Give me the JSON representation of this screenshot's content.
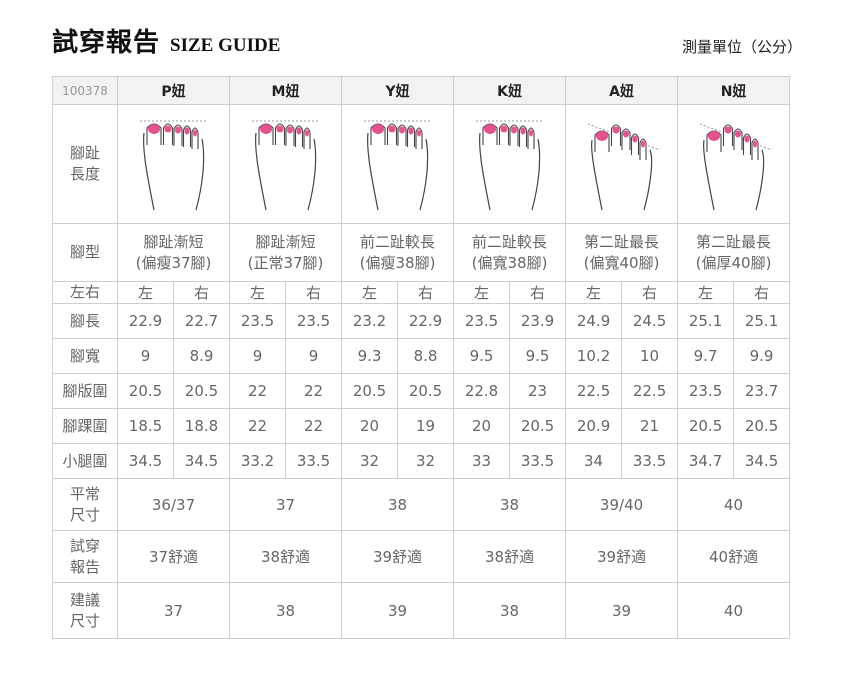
{
  "header": {
    "title_cn": "試穿報告",
    "title_en": "SIZE GUIDE",
    "unit": "測量單位（公分）"
  },
  "product_code": "100378",
  "models": [
    {
      "name": "P妞",
      "toe_shape": "even",
      "foot_type_1": "腳趾漸短",
      "foot_type_2": "(偏瘦37腳)",
      "length": [
        "22.9",
        "22.7"
      ],
      "width": [
        "9",
        "8.9"
      ],
      "girth": [
        "20.5",
        "20.5"
      ],
      "ankle": [
        "18.5",
        "18.8"
      ],
      "calf": [
        "34.5",
        "34.5"
      ],
      "usual_size": "36/37",
      "try_report": "37舒適",
      "recommended": "37"
    },
    {
      "name": "M妞",
      "toe_shape": "even",
      "foot_type_1": "腳趾漸短",
      "foot_type_2": "(正常37腳)",
      "length": [
        "23.5",
        "23.5"
      ],
      "width": [
        "9",
        "9"
      ],
      "girth": [
        "22",
        "22"
      ],
      "ankle": [
        "22",
        "22"
      ],
      "calf": [
        "33.2",
        "33.5"
      ],
      "usual_size": "37",
      "try_report": "38舒適",
      "recommended": "38"
    },
    {
      "name": "Y妞",
      "toe_shape": "even",
      "foot_type_1": "前二趾較長",
      "foot_type_2": "(偏瘦38腳)",
      "length": [
        "23.2",
        "22.9"
      ],
      "width": [
        "9.3",
        "8.8"
      ],
      "girth": [
        "20.5",
        "20.5"
      ],
      "ankle": [
        "20",
        "19"
      ],
      "calf": [
        "32",
        "32"
      ],
      "usual_size": "38",
      "try_report": "39舒適",
      "recommended": "39"
    },
    {
      "name": "K妞",
      "toe_shape": "even",
      "foot_type_1": "前二趾較長",
      "foot_type_2": "(偏寬38腳)",
      "length": [
        "23.5",
        "23.9"
      ],
      "width": [
        "9.5",
        "9.5"
      ],
      "girth": [
        "22.8",
        "23"
      ],
      "ankle": [
        "20",
        "20.5"
      ],
      "calf": [
        "33",
        "33.5"
      ],
      "usual_size": "38",
      "try_report": "38舒適",
      "recommended": "38"
    },
    {
      "name": "A妞",
      "toe_shape": "sloped",
      "foot_type_1": "第二趾最長",
      "foot_type_2": "(偏寬40腳)",
      "length": [
        "24.9",
        "24.5"
      ],
      "width": [
        "10.2",
        "10"
      ],
      "girth": [
        "22.5",
        "22.5"
      ],
      "ankle": [
        "20.9",
        "21"
      ],
      "calf": [
        "34",
        "33.5"
      ],
      "usual_size": "39/40",
      "try_report": "39舒適",
      "recommended": "39"
    },
    {
      "name": "N妞",
      "toe_shape": "sloped",
      "foot_type_1": "第二趾最長",
      "foot_type_2": "(偏厚40腳)",
      "length": [
        "25.1",
        "25.1"
      ],
      "width": [
        "9.7",
        "9.9"
      ],
      "girth": [
        "23.5",
        "23.7"
      ],
      "ankle": [
        "20.5",
        "20.5"
      ],
      "calf": [
        "34.7",
        "34.5"
      ],
      "usual_size": "40",
      "try_report": "40舒適",
      "recommended": "40"
    }
  ],
  "labels": {
    "toe_length_1": "腳趾",
    "toe_length_2": "長度",
    "foot_type": "腳型",
    "left": "左",
    "right": "右",
    "left_right": "左右",
    "length": "腳長",
    "width": "腳寬",
    "girth": "腳版圍",
    "ankle": "腳踝圍",
    "calf": "小腿圍",
    "usual_1": "平常",
    "usual_2": "尺寸",
    "try_1": "試穿",
    "try_2": "報告",
    "rec_1": "建議",
    "rec_2": "尺寸"
  },
  "colors": {
    "toenail": "#e8508e",
    "recommended": "#e8508e",
    "header_bg": "#f2f2f2",
    "border": "#cfcfcf"
  }
}
